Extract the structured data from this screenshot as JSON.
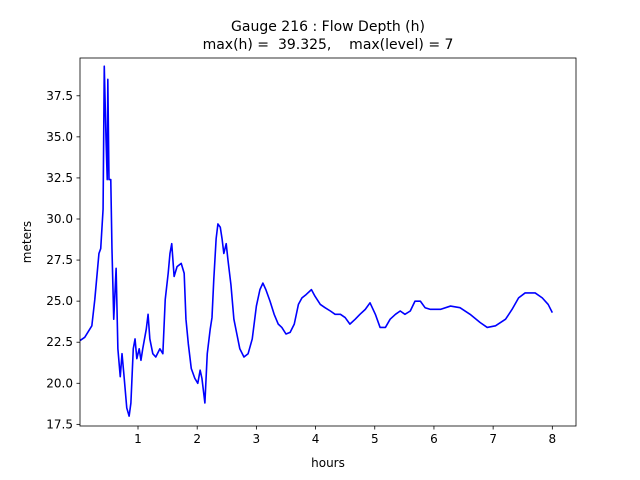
{
  "chart_data": {
    "type": "line",
    "title": "Gauge 216 : Flow Depth (h)",
    "subtitle": "max(h) =  39.325,    max(level) = 7",
    "xlabel": "hours",
    "ylabel": "meters",
    "color": "#0000ff",
    "x": [
      0.02,
      0.1,
      0.22,
      0.27,
      0.34,
      0.37,
      0.41,
      0.43,
      0.46,
      0.48,
      0.49,
      0.51,
      0.54,
      0.56,
      0.59,
      0.63,
      0.66,
      0.7,
      0.73,
      0.76,
      0.81,
      0.85,
      0.88,
      0.92,
      0.95,
      0.98,
      1.02,
      1.05,
      1.08,
      1.14,
      1.17,
      1.2,
      1.25,
      1.3,
      1.37,
      1.42,
      1.46,
      1.51,
      1.54,
      1.57,
      1.61,
      1.66,
      1.73,
      1.78,
      1.81,
      1.85,
      1.9,
      1.96,
      2.01,
      2.05,
      2.08,
      2.13,
      2.17,
      2.22,
      2.25,
      2.28,
      2.32,
      2.35,
      2.39,
      2.42,
      2.45,
      2.49,
      2.52,
      2.57,
      2.62,
      2.67,
      2.72,
      2.79,
      2.86,
      2.93,
      3.0,
      3.06,
      3.11,
      3.16,
      3.23,
      3.3,
      3.37,
      3.43,
      3.5,
      3.57,
      3.64,
      3.71,
      3.77,
      3.84,
      3.93,
      3.99,
      4.08,
      4.16,
      4.25,
      4.33,
      4.42,
      4.5,
      4.58,
      4.67,
      4.75,
      4.84,
      4.92,
      5.01,
      5.09,
      5.18,
      5.26,
      5.35,
      5.43,
      5.51,
      5.6,
      5.68,
      5.77,
      5.85,
      5.94,
      6.11,
      6.28,
      6.44,
      6.61,
      6.78,
      6.9,
      7.04,
      7.21,
      7.32,
      7.43,
      7.54,
      7.71,
      7.83,
      7.93,
      8.0
    ],
    "values": [
      22.6,
      22.8,
      23.5,
      25.1,
      27.9,
      28.2,
      30.6,
      39.3,
      34.8,
      32.4,
      38.5,
      32.4,
      32.4,
      28.2,
      23.9,
      27.0,
      22.1,
      20.4,
      21.8,
      20.6,
      18.5,
      18.0,
      18.8,
      22.1,
      22.7,
      21.5,
      22.1,
      21.4,
      22.1,
      23.3,
      24.2,
      22.7,
      21.8,
      21.6,
      22.1,
      21.8,
      25.1,
      26.7,
      27.9,
      28.5,
      26.5,
      27.1,
      27.3,
      26.7,
      23.9,
      22.4,
      20.9,
      20.3,
      20.0,
      20.8,
      20.3,
      18.8,
      21.8,
      23.3,
      24.0,
      26.3,
      28.8,
      29.7,
      29.5,
      28.8,
      27.9,
      28.5,
      27.5,
      26.0,
      23.9,
      23.0,
      22.1,
      21.6,
      21.8,
      22.7,
      24.7,
      25.7,
      26.1,
      25.7,
      25.0,
      24.2,
      23.6,
      23.4,
      23.0,
      23.1,
      23.6,
      24.8,
      25.2,
      25.4,
      25.7,
      25.3,
      24.8,
      24.6,
      24.4,
      24.2,
      24.2,
      24.0,
      23.6,
      23.9,
      24.2,
      24.5,
      24.9,
      24.2,
      23.4,
      23.4,
      23.9,
      24.2,
      24.4,
      24.2,
      24.4,
      25.0,
      25.0,
      24.6,
      24.5,
      24.5,
      24.7,
      24.6,
      24.2,
      23.7,
      23.4,
      23.5,
      23.9,
      24.5,
      25.2,
      25.5,
      25.5,
      25.2,
      24.8,
      24.3
    ],
    "xlim": [
      0.02,
      8.4
    ],
    "xticks": [
      1,
      2,
      3,
      4,
      5,
      6,
      7,
      8
    ],
    "ylim": [
      17.4,
      39.8
    ],
    "yticks": [
      17.5,
      {
        "value": 20,
        "label": "20.0"
      },
      22.5,
      {
        "value": 25,
        "label": "25.0"
      },
      27.5,
      {
        "value": 30,
        "label": "30.0"
      },
      32.5,
      {
        "value": 35,
        "label": "35.0"
      },
      37.5
    ],
    "grid": false
  }
}
